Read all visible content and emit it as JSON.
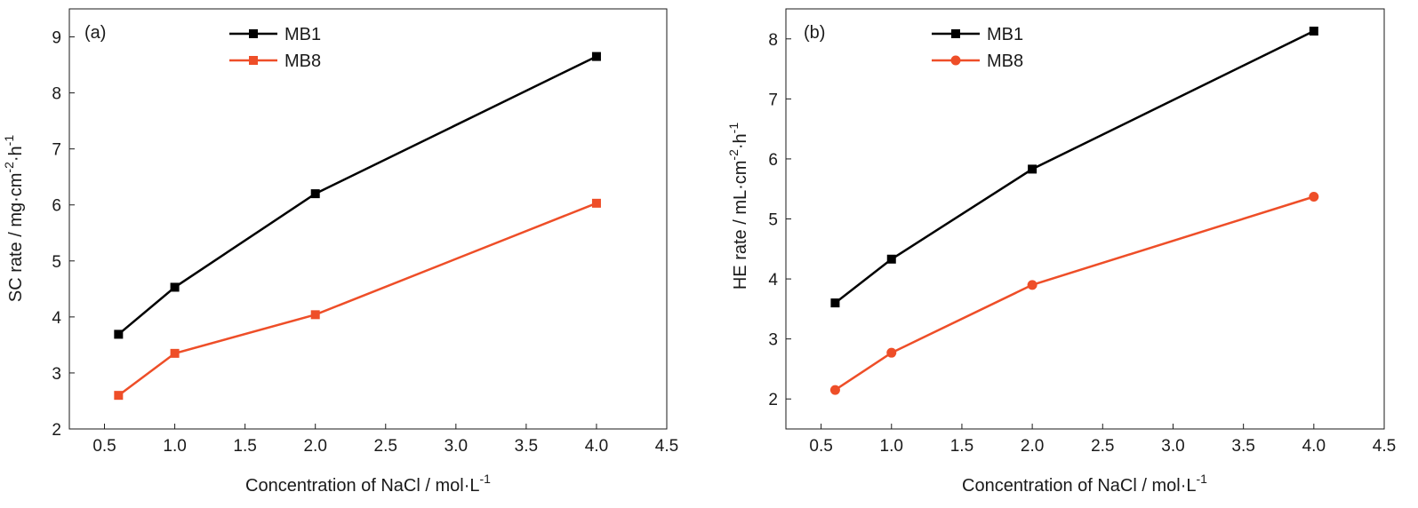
{
  "chart_data": [
    {
      "type": "line",
      "panel_label": "(a)",
      "xlabel": "Concentration of NaCl / mol·L",
      "xlabel_sup": "-1",
      "ylabel_parts": [
        "SC rate / mg·cm",
        "-2",
        "·h",
        "-1"
      ],
      "xlim": [
        0.25,
        4.5
      ],
      "ylim": [
        2,
        9.5
      ],
      "xticks": [
        0.5,
        1.0,
        1.5,
        2.0,
        2.5,
        3.0,
        3.5,
        4.0,
        4.5
      ],
      "xtick_labels": [
        "0.5",
        "1.0",
        "1.5",
        "2.0",
        "2.5",
        "3.0",
        "3.5",
        "4.0",
        "4.5"
      ],
      "yticks": [
        2,
        3,
        4,
        5,
        6,
        7,
        8,
        9
      ],
      "ytick_labels": [
        "2",
        "3",
        "4",
        "5",
        "6",
        "7",
        "8",
        "9"
      ],
      "grid": false,
      "legend_position": "top-center",
      "x": [
        0.6,
        1.0,
        2.0,
        4.0
      ],
      "series": [
        {
          "name": "MB1",
          "color": "#000000",
          "marker": "square",
          "values": [
            3.69,
            4.53,
            6.2,
            8.65
          ]
        },
        {
          "name": "MB8",
          "color": "#ee4e28",
          "marker": "square",
          "values": [
            2.6,
            3.35,
            4.04,
            6.03
          ]
        }
      ]
    },
    {
      "type": "line",
      "panel_label": "(b)",
      "xlabel": "Concentration of NaCl / mol·L",
      "xlabel_sup": "-1",
      "ylabel_parts": [
        "HE rate / mL·cm",
        "-2",
        "·h",
        "-1"
      ],
      "xlim": [
        0.25,
        4.5
      ],
      "ylim": [
        1.5,
        8.5
      ],
      "xticks": [
        0.5,
        1.0,
        1.5,
        2.0,
        2.5,
        3.0,
        3.5,
        4.0,
        4.5
      ],
      "xtick_labels": [
        "0.5",
        "1.0",
        "1.5",
        "2.0",
        "2.5",
        "3.0",
        "3.5",
        "4.0",
        "4.5"
      ],
      "yticks": [
        2,
        3,
        4,
        5,
        6,
        7,
        8
      ],
      "ytick_labels": [
        "2",
        "3",
        "4",
        "5",
        "6",
        "7",
        "8"
      ],
      "grid": false,
      "legend_position": "top-center",
      "x": [
        0.6,
        1.0,
        2.0,
        4.0
      ],
      "series": [
        {
          "name": "MB1",
          "color": "#000000",
          "marker": "square",
          "values": [
            3.6,
            4.33,
            5.83,
            8.13
          ]
        },
        {
          "name": "MB8",
          "color": "#ee4e28",
          "marker": "circle",
          "values": [
            2.15,
            2.77,
            3.9,
            5.37
          ]
        }
      ]
    }
  ]
}
